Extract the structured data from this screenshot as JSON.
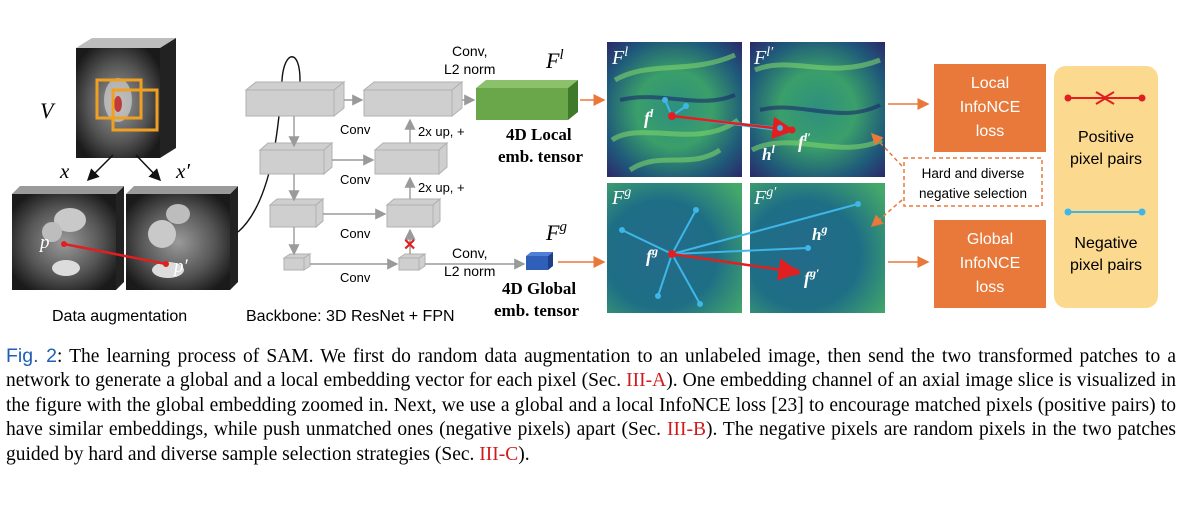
{
  "figure": {
    "aug": {
      "volume_label": "V",
      "x_label": "x",
      "xprime_label": "x′",
      "p_label": "p",
      "pprime_label": "p′",
      "caption": "Data augmentation"
    },
    "backbone": {
      "caption": "Backbone: 3D ResNet + FPN",
      "conv_labels": [
        "Conv",
        "Conv",
        "Conv",
        "Conv"
      ],
      "up_labels": [
        "2x up, +",
        "2x up, +"
      ],
      "local_head": "Conv,\nL2 norm",
      "global_head": "Conv,\nL2 norm"
    },
    "local_tensor": {
      "symbol_base": "F",
      "symbol_sup": "l",
      "label_line1": "4D Local",
      "label_line2": "emb. tensor"
    },
    "global_tensor": {
      "symbol_base": "F",
      "symbol_sup": "g",
      "label_line1": "4D Global",
      "label_line2": "emb. tensor"
    },
    "maps": {
      "local_left_title": "F",
      "local_left_sup": "l",
      "local_right_title": "F",
      "local_right_sup": "l′",
      "global_left_title": "F",
      "global_left_sup": "g",
      "global_right_title": "F",
      "global_right_sup": "g′",
      "fl": "f",
      "fl_sup": "l",
      "flp": "f",
      "flp_sup": "l′",
      "hl": "h",
      "hl_sup": "l",
      "fg": "f",
      "fg_sup": "g",
      "fgp": "f",
      "fgp_sup": "g′",
      "hg": "h",
      "hg_sup": "g"
    },
    "losses": {
      "local": [
        "Local",
        "InfoNCE",
        "loss"
      ],
      "global": [
        "Global",
        "InfoNCE",
        "loss"
      ],
      "hard_negative": [
        "Hard and diverse",
        "negative selection"
      ]
    },
    "legend": {
      "positive": [
        "Positive",
        "pixel pairs"
      ],
      "negative": [
        "Negative",
        "pixel pairs"
      ]
    },
    "colors": {
      "loss_box": "#e8793a",
      "legend_bg": "#fbd98f",
      "positive": "#e02020",
      "negative": "#3fb6e8",
      "local_tensor": "#6aa64a",
      "global_tensor": "#2f5fb8",
      "map_bg": "#2a7a72"
    }
  },
  "caption": {
    "fig_label": "Fig. 2",
    "part1": ": The learning process of SAM. We first do random data augmentation to an unlabeled image, then send the two transformed patches to a network to generate a global and a local embedding vector for each pixel (Sec. ",
    "ref1": "III-A",
    "part2": "). One embedding channel of an axial image slice is visualized in the figure with the global embedding zoomed in. Next, we use a global and a local InfoNCE loss [23] to encourage matched pixels (positive pairs) to have similar embeddings, while push unmatched ones (negative pixels) apart (Sec. ",
    "ref2": "III-B",
    "part3": "). The negative pixels are random pixels in the two patches guided by hard and diverse sample selection strategies (Sec. ",
    "ref3": "III-C",
    "part4": ")."
  }
}
